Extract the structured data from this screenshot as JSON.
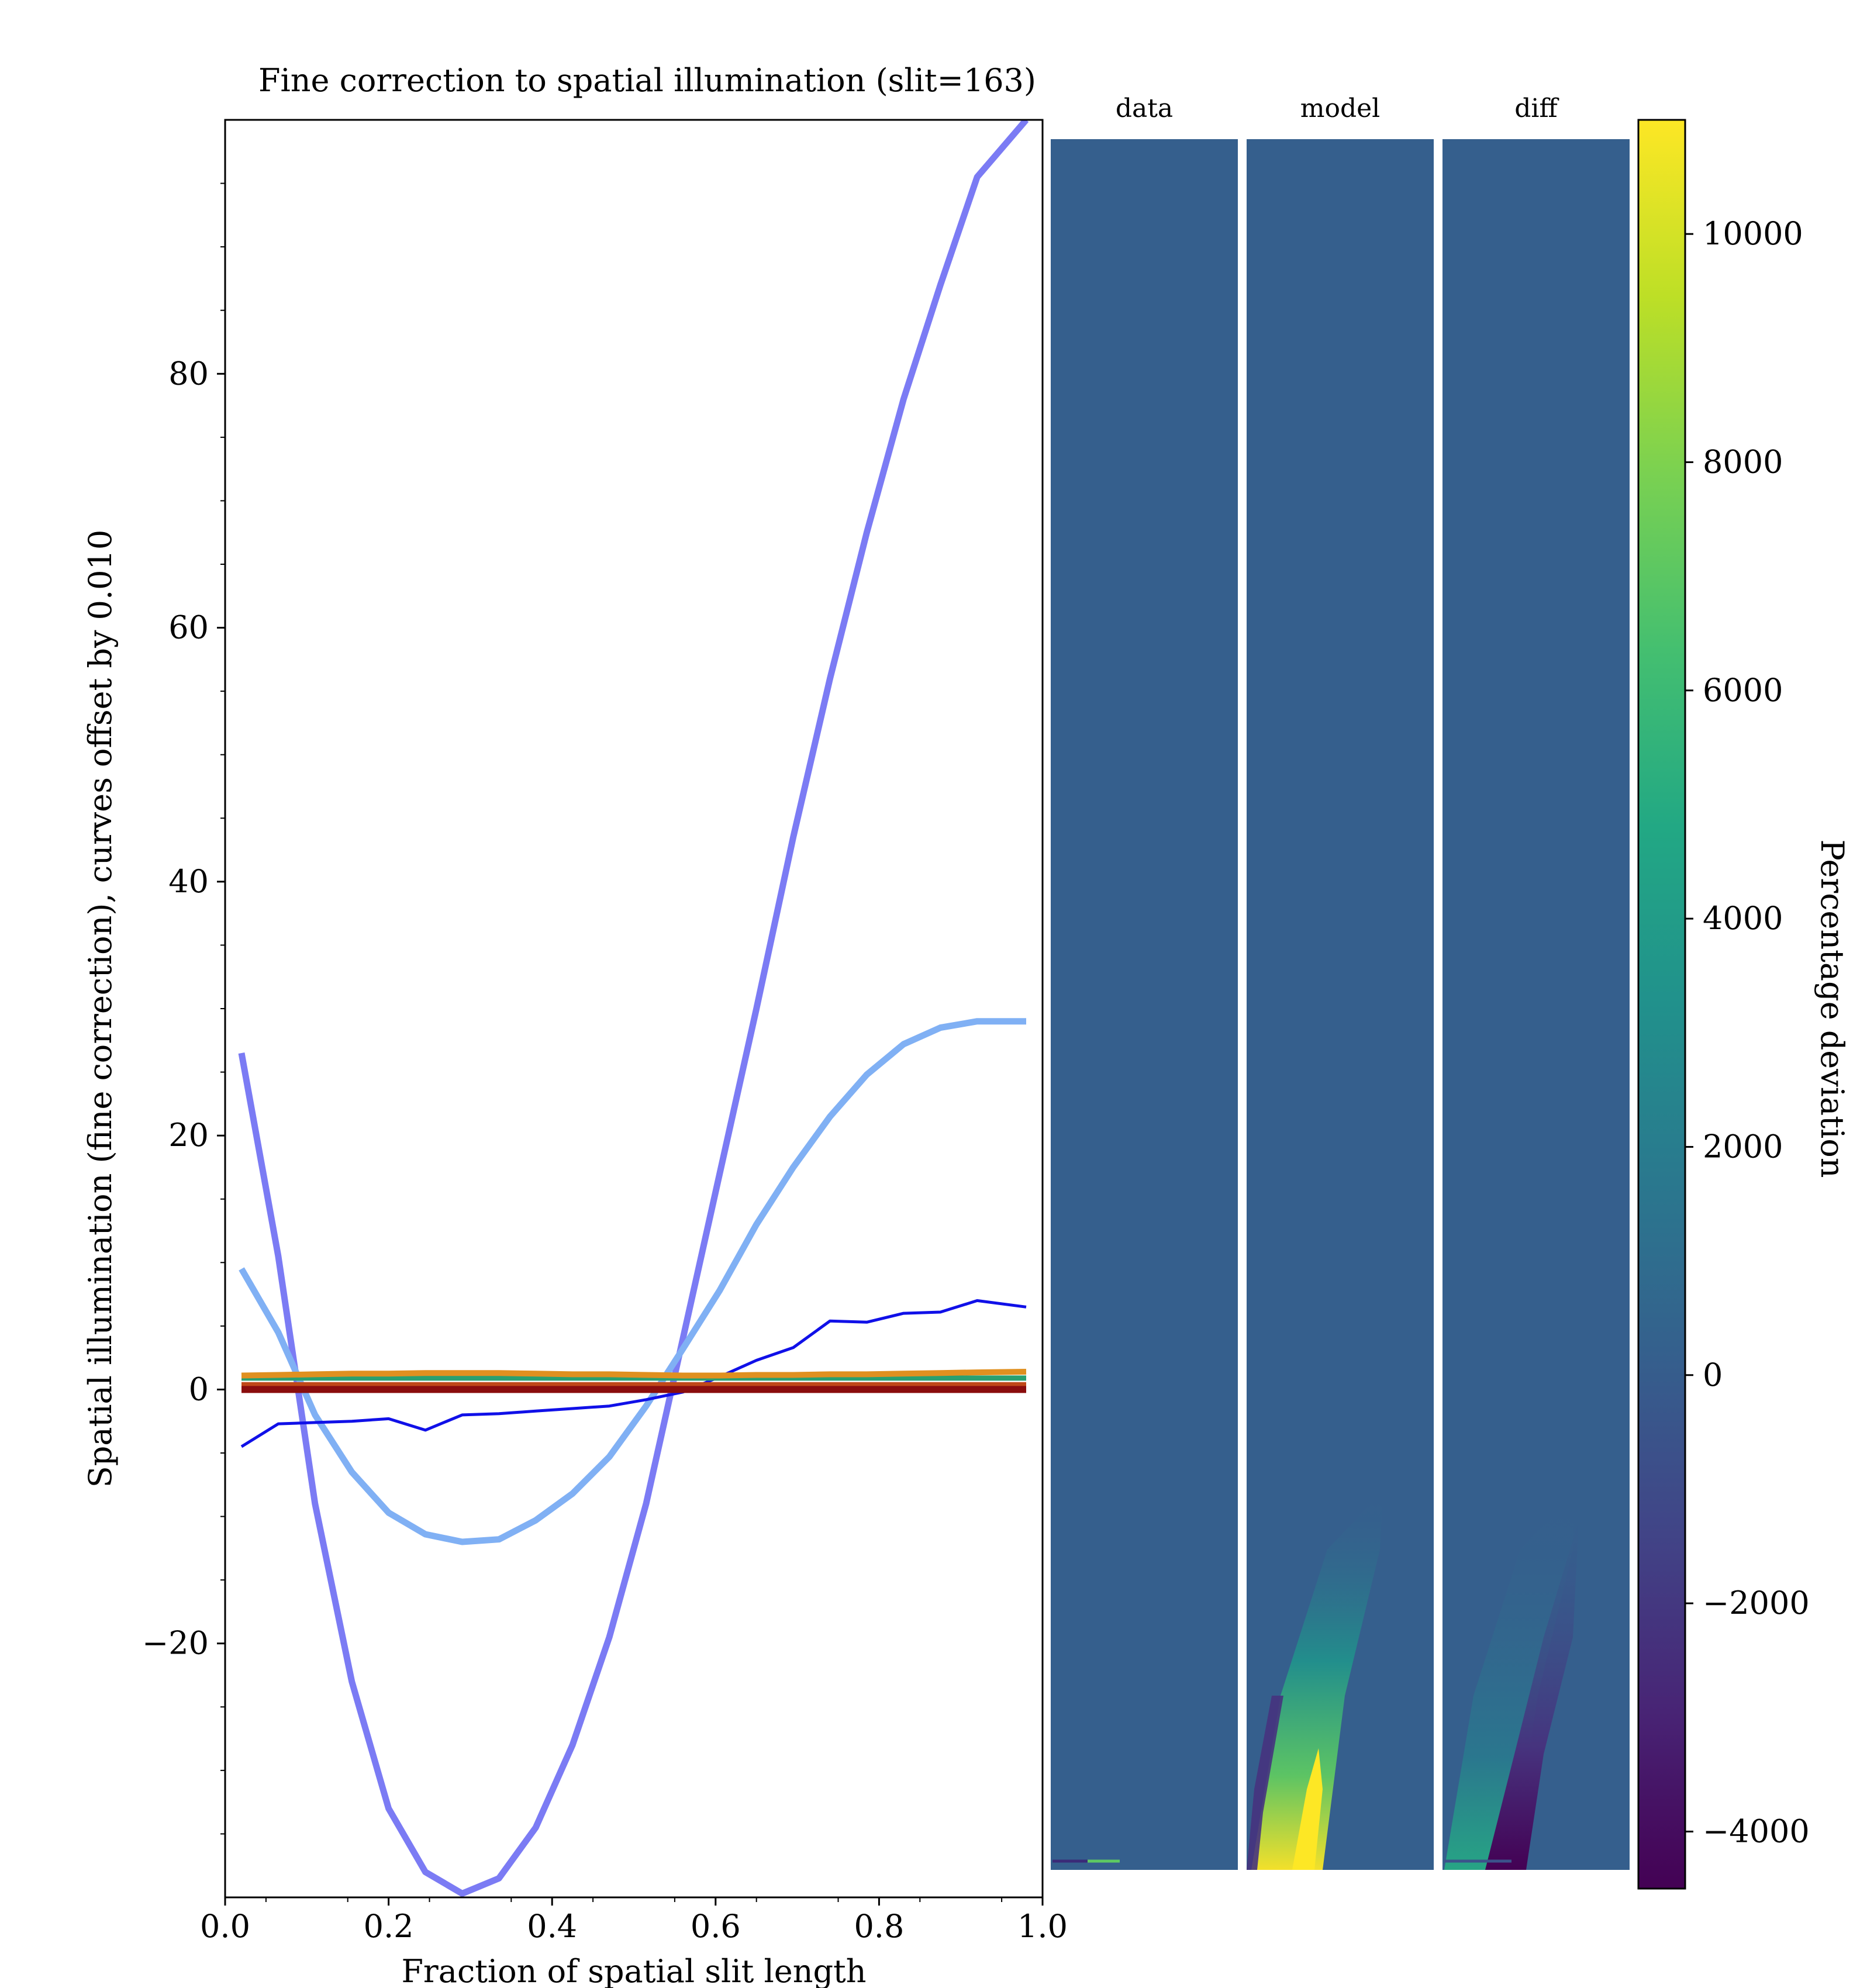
{
  "chart_data": [
    {
      "type": "line",
      "title": "Fine correction to spatial illumination (slit=163)",
      "xlabel": "Fraction of spatial slit length",
      "ylabel": "Spatial illumination (fine correction), curves offset by 0.010",
      "xlim": [
        0.0,
        1.0
      ],
      "ylim": [
        -40,
        100
      ],
      "xticks": [
        0.0,
        0.2,
        0.4,
        0.6,
        0.8,
        1.0
      ],
      "xtick_labels": [
        "0.0",
        "0.2",
        "0.4",
        "0.6",
        "0.8",
        "1.0"
      ],
      "yticks": [
        -20,
        0,
        20,
        40,
        60,
        80
      ],
      "ytick_labels": [
        "−20",
        "0",
        "20",
        "40",
        "60",
        "80"
      ],
      "grid": false,
      "x": [
        0.02,
        0.065,
        0.11,
        0.155,
        0.2,
        0.245,
        0.29,
        0.335,
        0.38,
        0.425,
        0.47,
        0.515,
        0.56,
        0.605,
        0.65,
        0.695,
        0.74,
        0.785,
        0.83,
        0.875,
        0.92,
        0.98
      ],
      "series": [
        {
          "color": "#7b7bf4",
          "width": 11,
          "values": [
            26.5,
            10.5,
            -9,
            -23,
            -33,
            -38,
            -39.7,
            -38.5,
            -34.5,
            -28,
            -19.5,
            -9,
            4,
            17,
            30,
            43.5,
            56,
            67.5,
            78,
            87,
            95.5,
            100
          ]
        },
        {
          "color": "#80b0f4",
          "width": 11,
          "values": [
            9.5,
            4.5,
            -2,
            -6.5,
            -9.7,
            -11.4,
            -12,
            -11.8,
            -10.3,
            -8.2,
            -5.3,
            -1.3,
            3.2,
            7.8,
            13,
            17.5,
            21.5,
            24.8,
            27.2,
            28.5,
            29,
            29
          ]
        },
        {
          "color": "#1010e8",
          "width": 5,
          "values": [
            -4.5,
            -2.7,
            -2.6,
            -2.5,
            -2.3,
            -3.2,
            -2,
            -1.9,
            -1.7,
            -1.5,
            -1.3,
            -0.8,
            -0.2,
            1,
            2.3,
            3.3,
            5.4,
            5.3,
            6,
            6.1,
            7,
            6.5
          ]
        },
        {
          "color": "#2aa070",
          "width": 9,
          "values": [
            0.9,
            0.9,
            0.9,
            0.9,
            0.9,
            0.9,
            0.9,
            0.9,
            0.9,
            0.9,
            0.9,
            0.9,
            0.9,
            0.9,
            0.9,
            0.9,
            0.9,
            0.9,
            0.9,
            0.9,
            0.9,
            0.9
          ]
        },
        {
          "color": "#e09020",
          "width": 10,
          "values": [
            1.1,
            1.15,
            1.2,
            1.25,
            1.25,
            1.3,
            1.3,
            1.3,
            1.25,
            1.2,
            1.2,
            1.15,
            1.1,
            1.1,
            1.15,
            1.15,
            1.2,
            1.2,
            1.25,
            1.3,
            1.35,
            1.4
          ]
        },
        {
          "color": "#c04818",
          "width": 10,
          "values": [
            0.35,
            0.35,
            0.35,
            0.35,
            0.35,
            0.35,
            0.35,
            0.35,
            0.35,
            0.35,
            0.35,
            0.35,
            0.35,
            0.35,
            0.35,
            0.35,
            0.35,
            0.35,
            0.35,
            0.35,
            0.35,
            0.35
          ]
        },
        {
          "color": "#8a0d0d",
          "width": 12,
          "values": [
            0,
            0,
            0,
            0,
            0,
            0,
            0,
            0,
            0,
            0,
            0,
            0,
            0,
            0,
            0,
            0,
            0,
            0,
            0,
            0,
            0,
            0
          ]
        }
      ]
    },
    {
      "type": "heatmap",
      "panels": [
        {
          "title": "data"
        },
        {
          "title": "model"
        },
        {
          "title": "diff"
        }
      ],
      "colorbar": {
        "label": "Percentage deviation",
        "range": [
          -4500,
          11000
        ],
        "colormap": "viridis",
        "ticks": [
          -4000,
          -2000,
          0,
          2000,
          4000,
          6000,
          8000,
          10000
        ],
        "tick_labels": [
          "−4000",
          "−2000",
          "0",
          "2000",
          "4000",
          "6000",
          "8000",
          "10000"
        ]
      },
      "background_value": 0
    }
  ]
}
